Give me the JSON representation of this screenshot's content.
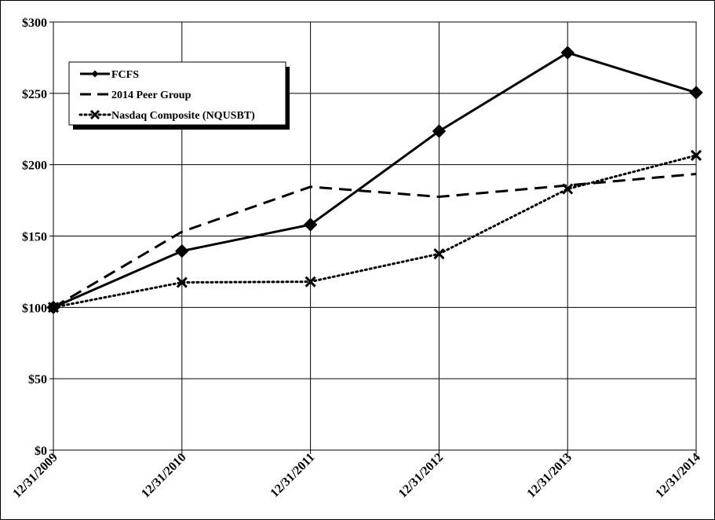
{
  "chart_data": {
    "type": "line",
    "title": "",
    "xlabel": "",
    "ylabel": "",
    "categories": [
      "12/31/2009",
      "12/31/2010",
      "12/31/2011",
      "12/31/2012",
      "12/31/2013",
      "12/31/2014"
    ],
    "ylim": [
      0,
      300
    ],
    "yticks": [
      0,
      50,
      100,
      150,
      200,
      250,
      300
    ],
    "ytick_labels": [
      "$0",
      "$50",
      "$100",
      "$150",
      "$200",
      "$250",
      "$300"
    ],
    "grid": true,
    "legend_position": "top-left",
    "series": [
      {
        "name": "FCFS",
        "values": [
          100,
          139.5,
          158,
          223.5,
          278.5,
          250.5
        ],
        "line_style": "solid",
        "marker": "diamond",
        "color": "#000000"
      },
      {
        "name": "2014 Peer Group",
        "values": [
          100,
          153,
          184.5,
          177.5,
          185.5,
          193.5
        ],
        "line_style": "dashed",
        "marker": "none",
        "color": "#000000"
      },
      {
        "name": "Nasdaq Composite (NQUSBT)",
        "values": [
          100,
          117.5,
          118,
          137.5,
          183,
          206.5
        ],
        "line_style": "dotted",
        "marker": "x",
        "color": "#000000"
      }
    ]
  }
}
